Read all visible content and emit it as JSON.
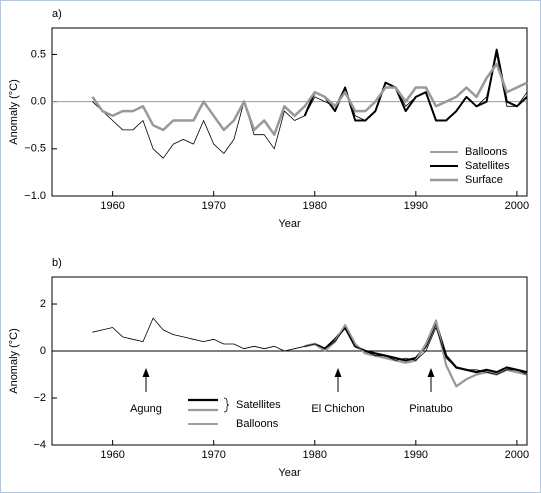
{
  "chart_data": [
    {
      "type": "line",
      "panel_label": "a)",
      "ylabel": "Anomaly (°C)",
      "xlabel": "Year",
      "xlim": [
        1954,
        2001
      ],
      "xticks": [
        1960,
        1970,
        1980,
        1990,
        2000
      ],
      "ylim": [
        -1.0,
        0.78
      ],
      "yticks": [
        {
          "value": -1.0,
          "label": "−1.0"
        },
        {
          "value": -0.5,
          "label": "−0.5"
        },
        {
          "value": 0,
          "label": "0.0"
        },
        0.5
      ],
      "reference_line": 0,
      "reference_color": "#999999",
      "series": [
        {
          "name": "Balloons",
          "color": "#000000",
          "x": [
            1958,
            1959,
            1960,
            1961,
            1962,
            1963,
            1964,
            1965,
            1966,
            1967,
            1968,
            1969,
            1970,
            1971,
            1972,
            1973,
            1974,
            1975,
            1976,
            1977,
            1978,
            1979,
            1980,
            1981,
            1982,
            1983,
            1984,
            1985,
            1986,
            1987,
            1988,
            1989,
            1990,
            1991,
            1992,
            1993,
            1994,
            1995,
            1996,
            1997,
            1998,
            1999,
            2000,
            2001
          ],
          "values": [
            0.0,
            -0.1,
            -0.2,
            -0.3,
            -0.3,
            -0.2,
            -0.5,
            -0.6,
            -0.45,
            -0.4,
            -0.45,
            -0.2,
            -0.45,
            -0.55,
            -0.4,
            0.0,
            -0.35,
            -0.35,
            -0.5,
            -0.1,
            -0.2,
            -0.15,
            0.05,
            0.0,
            -0.05,
            0.15,
            -0.15,
            -0.2,
            -0.1,
            0.2,
            0.15,
            -0.05,
            0.05,
            0.1,
            -0.2,
            -0.2,
            -0.1,
            0.05,
            -0.05,
            0.05,
            0.5,
            -0.05,
            -0.05,
            0.1
          ]
        },
        {
          "name": "Satellites",
          "color": "#000000",
          "x": [
            1979,
            1980,
            1981,
            1982,
            1983,
            1984,
            1985,
            1986,
            1987,
            1988,
            1989,
            1990,
            1991,
            1992,
            1993,
            1994,
            1995,
            1996,
            1997,
            1998,
            1999,
            2000,
            2001
          ],
          "values": [
            -0.15,
            0.1,
            0.05,
            -0.1,
            0.15,
            -0.2,
            -0.2,
            -0.1,
            0.2,
            0.15,
            -0.1,
            0.05,
            0.1,
            -0.2,
            -0.2,
            -0.1,
            0.05,
            -0.05,
            0.0,
            0.55,
            0.0,
            -0.05,
            0.05
          ]
        },
        {
          "name": "Surface",
          "color": "#999999",
          "x": [
            1958,
            1959,
            1960,
            1961,
            1962,
            1963,
            1964,
            1965,
            1966,
            1967,
            1968,
            1969,
            1970,
            1971,
            1972,
            1973,
            1974,
            1975,
            1976,
            1977,
            1978,
            1979,
            1980,
            1981,
            1982,
            1983,
            1984,
            1985,
            1986,
            1987,
            1988,
            1989,
            1990,
            1991,
            1992,
            1993,
            1994,
            1995,
            1996,
            1997,
            1998,
            1999,
            2000,
            2001
          ],
          "values": [
            0.05,
            -0.1,
            -0.15,
            -0.1,
            -0.1,
            -0.05,
            -0.25,
            -0.3,
            -0.2,
            -0.2,
            -0.2,
            0.0,
            -0.15,
            -0.3,
            -0.2,
            0.0,
            -0.3,
            -0.2,
            -0.35,
            -0.05,
            -0.15,
            -0.05,
            0.1,
            0.05,
            -0.05,
            0.1,
            -0.1,
            -0.1,
            0.0,
            0.15,
            0.15,
            0.0,
            0.15,
            0.15,
            -0.05,
            0.0,
            0.05,
            0.15,
            0.05,
            0.25,
            0.4,
            0.1,
            0.15,
            0.2
          ]
        }
      ]
    },
    {
      "type": "line",
      "panel_label": "b)",
      "ylabel": "Anomaly (°C)",
      "xlabel": "Year",
      "xlim": [
        1954,
        2001
      ],
      "xticks": [
        1960,
        1970,
        1980,
        1990,
        2000
      ],
      "ylim": [
        -4,
        3.15
      ],
      "yticks": [
        {
          "value": -4,
          "label": "−4"
        },
        {
          "value": -2,
          "label": "−2"
        },
        0,
        2
      ],
      "reference_line": 0,
      "reference_color": "#000000",
      "series": [
        {
          "name": "Satellites",
          "color": "#000000",
          "x": [
            1979,
            1980,
            1981,
            1982,
            1983,
            1984,
            1985,
            1986,
            1987,
            1988,
            1989,
            1990,
            1991,
            1992,
            1993,
            1994,
            1995,
            1996,
            1997,
            1998,
            1999,
            2000,
            2001
          ],
          "values": [
            0.2,
            0.3,
            0.1,
            0.5,
            1.0,
            0.2,
            0.0,
            -0.1,
            -0.2,
            -0.3,
            -0.4,
            -0.3,
            0.2,
            1.2,
            -0.2,
            -0.7,
            -0.8,
            -0.9,
            -0.8,
            -0.9,
            -0.7,
            -0.8,
            -0.9
          ]
        },
        {
          "color": "#999999",
          "x": [
            1979,
            1980,
            1981,
            1982,
            1983,
            1984,
            1985,
            1986,
            1987,
            1988,
            1989,
            1990,
            1991,
            1992,
            1993,
            1994,
            1995,
            1996,
            1997,
            1998,
            1999,
            2000,
            2001
          ],
          "values": [
            0.2,
            0.3,
            0.0,
            0.4,
            1.1,
            0.3,
            -0.1,
            -0.2,
            -0.3,
            -0.4,
            -0.5,
            -0.4,
            0.3,
            1.3,
            -0.6,
            -1.5,
            -1.2,
            -1.0,
            -0.9,
            -1.0,
            -0.8,
            -0.9,
            -1.0
          ]
        },
        {
          "name": "Balloons",
          "color": "#000000",
          "x": [
            1958,
            1959,
            1960,
            1961,
            1962,
            1963,
            1964,
            1965,
            1966,
            1967,
            1968,
            1969,
            1970,
            1971,
            1972,
            1973,
            1974,
            1975,
            1976,
            1977,
            1978,
            1979,
            1980,
            1981,
            1982,
            1983,
            1984,
            1985,
            1986,
            1987,
            1988,
            1989,
            1990,
            1991,
            1992,
            1993,
            1994,
            1995,
            1996,
            1997,
            1998,
            1999,
            2000,
            2001
          ],
          "values": [
            0.8,
            0.9,
            1.0,
            0.6,
            0.5,
            0.4,
            1.4,
            0.9,
            0.7,
            0.6,
            0.5,
            0.4,
            0.5,
            0.3,
            0.3,
            0.1,
            0.2,
            0.1,
            0.2,
            0.0,
            0.1,
            0.2,
            0.3,
            0.1,
            0.4,
            1.0,
            0.2,
            0.0,
            -0.2,
            -0.2,
            -0.4,
            -0.3,
            -0.4,
            0.0,
            1.0,
            -0.3,
            -0.7,
            -0.8,
            -0.8,
            -0.9,
            -1.0,
            -0.8,
            -0.8,
            -1.0
          ]
        }
      ],
      "annotations": [
        {
          "text": "Agung",
          "x": 1963.3
        },
        {
          "text": "El Chichon",
          "x": 1982.3
        },
        {
          "text": "Pinatubo",
          "x": 1991.5
        }
      ]
    }
  ]
}
